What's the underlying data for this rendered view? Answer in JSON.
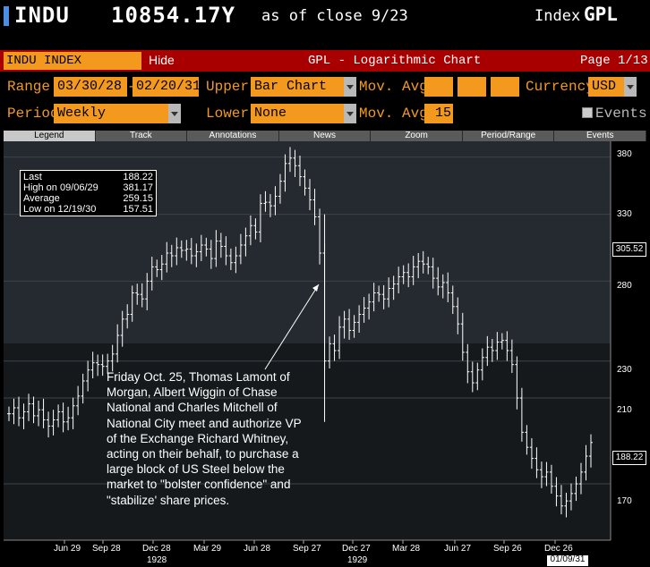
{
  "header": {
    "ticker": "INDU",
    "price": "10854.17Y",
    "as_of": "as of close  9/23",
    "index_label": "Index",
    "function": "GPL"
  },
  "title_bar": {
    "security": "INDU INDEX",
    "hide": "Hide",
    "title": "GPL - Logarithmic Chart",
    "page": "Page 1/13"
  },
  "controls": {
    "range_label": "Range",
    "range_start": "03/30/28",
    "range_end": "02/20/31",
    "upper_label": "Upper",
    "upper_value": "Bar Chart",
    "mov_avgs_label": "Mov. Avgs",
    "currency_label": "Currency",
    "currency_value": "USD",
    "period_label": "Period",
    "period_value": "Weekly",
    "lower_label": "Lower",
    "lower_value": "None",
    "mov_avg_label": "Mov. Avg",
    "mov_avg_value": "15",
    "events_label": "Events"
  },
  "tabs": [
    {
      "label": "Legend"
    },
    {
      "label": "Track"
    },
    {
      "label": "Annotations"
    },
    {
      "label": "News"
    },
    {
      "label": "Zoom"
    },
    {
      "label": "Period/Range"
    },
    {
      "label": "Events"
    }
  ],
  "stats": {
    "last_label": "Last",
    "last_value": "188.22",
    "high_label": "High on 09/06/29",
    "high_value": "381.17",
    "avg_label": "Average",
    "avg_value": "259.15",
    "low_label": "Low on 12/19/30",
    "low_value": "157.51"
  },
  "annotation": "Friday Oct. 25, Thomas Lamont of Morgan, Albert Wiggin of Chase National and Charles Mitchell of National City meet and authorize VP of the Exchange Richard Whitney, acting on their behalf, to purchase a large block of US Steel below the market to \"bolster confidence\" and \"stabilize' share prices.",
  "price_tags": {
    "current": "188.22",
    "cursor": "305.52"
  },
  "cursor_date": "01/09/31",
  "colors": {
    "orange": "#f39a1e",
    "red_bar": "#a80000",
    "plot_bg": "#1e2327"
  },
  "chart_data": {
    "type": "bar",
    "scale": "log",
    "ylim": [
      148,
      395
    ],
    "y_ticks": [
      170,
      210,
      230,
      280,
      330,
      380
    ],
    "x_ticks": [
      "Jun 29",
      "Sep 28",
      "Dec 28",
      "Mar 29",
      "Jun 28",
      "Sep 27",
      "Dec 27",
      "Mar 28",
      "Jun 27",
      "Sep 26",
      "Dec 26"
    ],
    "x_years": [
      "1928",
      "1929"
    ],
    "weekly_close": [
      202,
      205,
      200,
      203,
      207,
      201,
      204,
      199,
      196,
      199,
      203,
      198,
      200,
      206,
      211,
      219,
      225,
      229,
      228,
      227,
      230,
      234,
      245,
      255,
      258,
      272,
      271,
      268,
      280,
      290,
      288,
      292,
      300,
      298,
      304,
      302,
      303,
      298,
      301,
      306,
      303,
      296,
      309,
      305,
      298,
      293,
      298,
      306,
      313,
      321,
      316,
      339,
      340,
      337,
      345,
      358,
      374,
      379,
      372,
      362,
      352,
      342,
      328,
      300,
      230,
      240,
      236,
      250,
      255,
      248,
      253,
      258,
      262,
      266,
      272,
      271,
      268,
      275,
      278,
      283,
      286,
      283,
      290,
      294,
      292,
      290,
      282,
      276,
      279,
      272,
      263,
      252,
      235,
      224,
      218,
      225,
      232,
      238,
      236,
      241,
      242,
      236,
      228,
      210,
      193,
      186,
      181,
      176,
      173,
      175,
      169,
      165,
      161,
      163,
      166,
      170,
      175,
      182,
      188.22
    ],
    "last": 188.22,
    "high": 381.17,
    "average": 259.15,
    "low": 157.51
  }
}
